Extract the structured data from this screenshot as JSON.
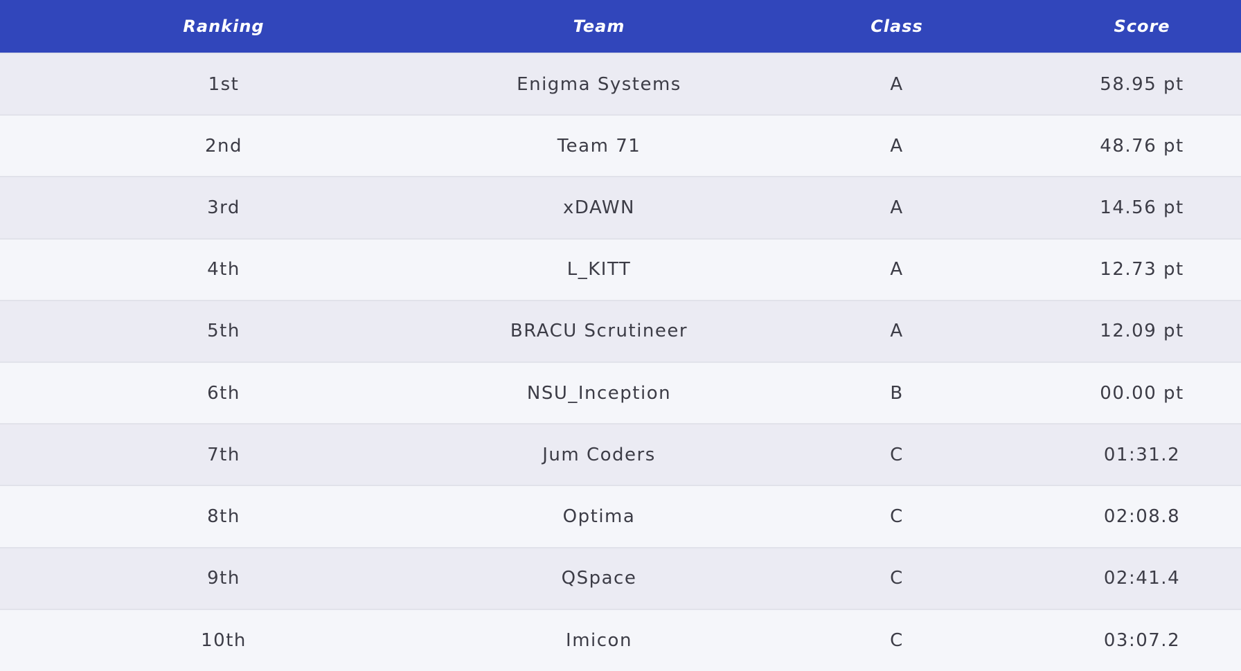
{
  "table": {
    "headers": {
      "ranking": "Ranking",
      "team": "Team",
      "class": "Class",
      "score": "Score"
    },
    "rows": [
      {
        "ranking": "1st",
        "team": "Enigma Systems",
        "class": "A",
        "score": "58.95 pt"
      },
      {
        "ranking": "2nd",
        "team": "Team 71",
        "class": "A",
        "score": "48.76 pt"
      },
      {
        "ranking": "3rd",
        "team": "xDAWN",
        "class": "A",
        "score": "14.56 pt"
      },
      {
        "ranking": "4th",
        "team": "L_KITT",
        "class": "A",
        "score": "12.73 pt"
      },
      {
        "ranking": "5th",
        "team": "BRACU Scrutineer",
        "class": "A",
        "score": "12.09 pt"
      },
      {
        "ranking": "6th",
        "team": "NSU_Inception",
        "class": "B",
        "score": "00.00 pt"
      },
      {
        "ranking": "7th",
        "team": "Jum Coders",
        "class": "C",
        "score": "01:31.2"
      },
      {
        "ranking": "8th",
        "team": "Optima",
        "class": "C",
        "score": "02:08.8"
      },
      {
        "ranking": "9th",
        "team": "QSpace",
        "class": "C",
        "score": "02:41.4"
      },
      {
        "ranking": "10th",
        "team": "Imicon",
        "class": "C",
        "score": "03:07.2"
      }
    ]
  },
  "colors": {
    "header_bg": "#3146bb",
    "header_text": "#ffffff",
    "row_odd": "#ebebf3",
    "row_even": "#f5f6fa",
    "row_text": "#3c3c46"
  }
}
